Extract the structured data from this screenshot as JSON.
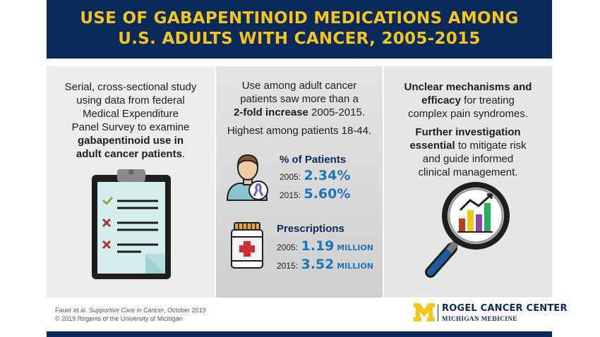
{
  "header": {
    "title_line1": "USE OF GABAPENTINOID MEDICATIONS AMONG",
    "title_line2": "U.S. ADULTS WITH CANCER, 2005-2015"
  },
  "col1": {
    "line1": "Serial, cross-sectional study",
    "line2": "using data from federal",
    "line3": "Medical Expenditure",
    "line4": "Panel Survey to examine",
    "line5_bold": "gabapentinoid use in",
    "line6_bold": "adult cancer patients",
    "line6_tail": "."
  },
  "col2": {
    "line1": "Use among adult cancer",
    "line2": "patients saw more than a",
    "line3_bold": "2-fold increase",
    "line3_tail": " 2005-2015.",
    "line4": "Highest among patients 18-44.",
    "patients": {
      "heading": "% of Patients",
      "rows": [
        {
          "year": "2005:",
          "value": "2.34%"
        },
        {
          "year": "2015:",
          "value": "5.60%"
        }
      ]
    },
    "prescriptions": {
      "heading": "Prescriptions",
      "rows": [
        {
          "year": "2005:",
          "value": "1.19",
          "unit": " MILLION"
        },
        {
          "year": "2015:",
          "value": "3.52",
          "unit": " MILLION"
        }
      ]
    }
  },
  "col3": {
    "p1_bold1": "Unclear mechanisms and",
    "p1_bold2": "efficacy",
    "p1_tail2": " for treating",
    "p1_line3": "complex pain syndromes.",
    "p2_bold1": "Further investigation",
    "p2_bold2": "essential",
    "p2_tail2": " to mitigate risk",
    "p2_line3": "and guide informed",
    "p2_line4": "clinical management."
  },
  "footer": {
    "cite_author": "Fauer et al. ",
    "cite_journal": "Supportive Care in Cancer",
    "cite_date": ", October 2019",
    "copyright": "© 2019 Regents of the University of Michigan",
    "logo_name": "ROGEL CANCER CENTER",
    "logo_sub": "MICHIGAN MEDICINE",
    "logo_letter": "M"
  },
  "colors": {
    "navy": "#0b2a5c",
    "gold": "#f5c518",
    "blue": "#1f73b7"
  },
  "icons": [
    "clipboard-icon",
    "check-icon",
    "x-icon",
    "patient-icon",
    "ribbon-icon",
    "pill-bottle-icon",
    "magnifier-chart-icon"
  ]
}
